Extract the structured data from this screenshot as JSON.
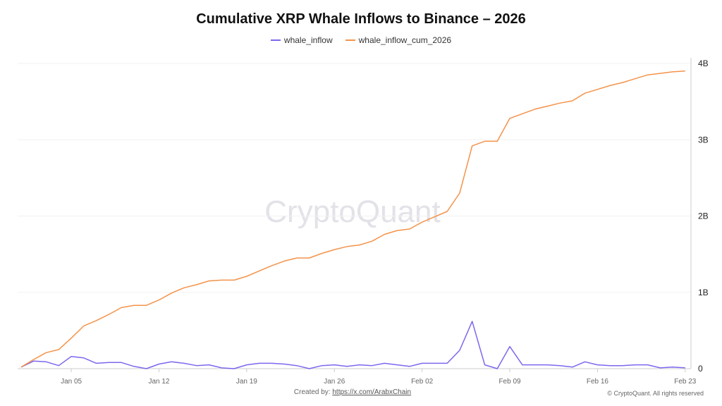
{
  "watermark": "CryptoQuant",
  "footer": {
    "created_label": "Created by:",
    "created_link": "https://x.com/ArabxChain",
    "copyright": "© CryptoQuant. All rights reserved"
  },
  "chart_data": {
    "type": "line",
    "title": "Cumulative XRP Whale Inflows to Binance – 2026",
    "legend_position": "top",
    "grid": true,
    "x_start": "2026-01-01",
    "x_end": "2026-02-23",
    "x_ticks": [
      "Jan 05",
      "Jan 12",
      "Jan 19",
      "Jan 26",
      "Feb 02",
      "Feb 09",
      "Feb 16",
      "Feb 23"
    ],
    "y_axis_side": "right",
    "y_ticks": [
      "0",
      "1B",
      "2B",
      "3B",
      "4B"
    ],
    "ylim": [
      0,
      4000000000
    ],
    "series": [
      {
        "name": "whale_inflow",
        "color": "#7b68ee",
        "values_billions": [
          0.02,
          0.1,
          0.09,
          0.04,
          0.16,
          0.14,
          0.07,
          0.08,
          0.08,
          0.03,
          0.0,
          0.06,
          0.09,
          0.07,
          0.04,
          0.05,
          0.01,
          0.0,
          0.05,
          0.07,
          0.07,
          0.06,
          0.04,
          0.0,
          0.04,
          0.05,
          0.03,
          0.05,
          0.04,
          0.07,
          0.05,
          0.03,
          0.07,
          0.07,
          0.07,
          0.24,
          0.62,
          0.05,
          0.0,
          0.29,
          0.05,
          0.05,
          0.05,
          0.04,
          0.02,
          0.09,
          0.05,
          0.04,
          0.04,
          0.05,
          0.05,
          0.01,
          0.02,
          0.01
        ]
      },
      {
        "name": "whale_inflow_cum_2026",
        "color": "#f4934a",
        "values_billions": [
          0.02,
          0.12,
          0.21,
          0.25,
          0.4,
          0.56,
          0.63,
          0.71,
          0.8,
          0.83,
          0.83,
          0.9,
          0.99,
          1.06,
          1.1,
          1.15,
          1.16,
          1.16,
          1.21,
          1.28,
          1.35,
          1.41,
          1.45,
          1.45,
          1.51,
          1.56,
          1.6,
          1.62,
          1.67,
          1.76,
          1.81,
          1.83,
          1.92,
          1.99,
          2.06,
          2.3,
          2.92,
          2.98,
          2.98,
          3.28,
          3.34,
          3.4,
          3.44,
          3.48,
          3.51,
          3.61,
          3.66,
          3.71,
          3.75,
          3.8,
          3.85,
          3.87,
          3.89,
          3.9
        ]
      }
    ]
  }
}
